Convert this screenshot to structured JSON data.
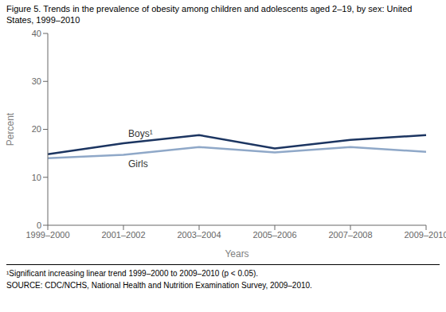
{
  "chart_data": {
    "type": "line",
    "title": "Figure 5. Trends in the prevalence of obesity among children and adolescents aged 2–19, by sex: United States, 1999–2010",
    "x_label": "Years",
    "y_label": "Percent",
    "categories": [
      "1999–2000",
      "2001–2002",
      "2003–2004",
      "2005–2006",
      "2007–2008",
      "2009–2010"
    ],
    "series": [
      {
        "name": "Girls",
        "color": "#8fa8c8",
        "values": [
          14.0,
          14.7,
          16.3,
          15.2,
          16.3,
          15.3
        ]
      },
      {
        "name": "Boys¹",
        "color": "#1c3561",
        "values": [
          14.8,
          17.1,
          18.8,
          16.0,
          17.8,
          18.8
        ]
      }
    ],
    "ylim": [
      0,
      40
    ],
    "yticks": [
      0,
      10,
      20,
      30,
      40
    ],
    "grid": false,
    "annotations": [
      "¹Significant increasing linear trend 1999–2000 to 2009–2010 (p < 0.05).",
      "SOURCE: CDC/NCHS, National Health and Nutrition Examination Survey, 2009–2010."
    ]
  }
}
